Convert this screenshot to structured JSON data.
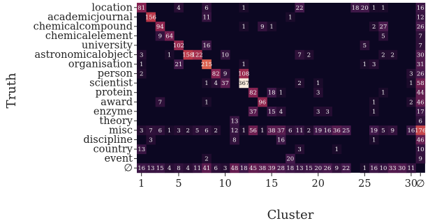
{
  "chart_data": {
    "type": "heatmap",
    "xlabel": "Cluster",
    "ylabel": "Truth",
    "rows": [
      "location",
      "academicjournal",
      "chemicalcompound",
      "chemicalelement",
      "university",
      "astronomicalobject",
      "organisation",
      "person",
      "scientist",
      "protein",
      "award",
      "enzyme",
      "theory",
      "misc",
      "discipline",
      "country",
      "event",
      "∅"
    ],
    "columns": [
      "1",
      "2",
      "3",
      "4",
      "5",
      "6",
      "7",
      "8",
      "9",
      "10",
      "11",
      "12",
      "13",
      "14",
      "15",
      "16",
      "17",
      "18",
      "19",
      "20",
      "21",
      "22",
      "23",
      "24",
      "25",
      "26",
      "27",
      "28",
      "29",
      "30",
      "∅"
    ],
    "x_ticks": [
      "1",
      "5",
      "10",
      "15",
      "20",
      "25",
      "30",
      "∅"
    ],
    "values": [
      [
        81,
        null,
        null,
        null,
        4,
        null,
        null,
        6,
        null,
        null,
        null,
        1,
        null,
        null,
        null,
        null,
        null,
        22,
        null,
        null,
        null,
        null,
        null,
        18,
        20,
        1,
        1,
        null,
        null,
        null,
        16
      ],
      [
        null,
        156,
        null,
        null,
        null,
        null,
        null,
        11,
        null,
        null,
        null,
        null,
        null,
        null,
        null,
        null,
        1,
        null,
        null,
        null,
        null,
        null,
        null,
        null,
        null,
        null,
        null,
        null,
        null,
        null,
        12
      ],
      [
        null,
        null,
        94,
        null,
        null,
        null,
        null,
        null,
        null,
        null,
        null,
        1,
        null,
        9,
        1,
        null,
        null,
        null,
        null,
        null,
        null,
        null,
        null,
        null,
        null,
        2,
        27,
        null,
        null,
        null,
        26
      ],
      [
        null,
        null,
        9,
        64,
        null,
        null,
        null,
        null,
        null,
        null,
        null,
        null,
        null,
        null,
        null,
        null,
        null,
        null,
        null,
        null,
        null,
        null,
        null,
        null,
        null,
        null,
        5,
        null,
        null,
        null,
        7
      ],
      [
        null,
        null,
        null,
        null,
        102,
        null,
        null,
        16,
        null,
        null,
        null,
        null,
        null,
        null,
        null,
        null,
        null,
        null,
        null,
        null,
        null,
        null,
        null,
        null,
        5,
        null,
        null,
        null,
        null,
        null,
        7
      ],
      [
        3,
        null,
        null,
        1,
        null,
        158,
        122,
        null,
        null,
        10,
        null,
        null,
        null,
        null,
        null,
        null,
        null,
        7,
        2,
        null,
        null,
        null,
        null,
        null,
        null,
        null,
        2,
        2,
        null,
        null,
        30
      ],
      [
        1,
        null,
        null,
        null,
        21,
        null,
        null,
        215,
        null,
        null,
        null,
        1,
        null,
        null,
        null,
        null,
        null,
        null,
        null,
        null,
        null,
        null,
        null,
        null,
        1,
        3,
        null,
        null,
        null,
        null,
        31
      ],
      [
        2,
        null,
        null,
        null,
        null,
        null,
        null,
        null,
        82,
        9,
        null,
        108,
        null,
        null,
        null,
        null,
        null,
        null,
        null,
        null,
        null,
        null,
        null,
        null,
        null,
        null,
        null,
        null,
        null,
        3,
        26
      ],
      [
        null,
        null,
        null,
        null,
        null,
        null,
        null,
        1,
        4,
        37,
        null,
        367,
        null,
        null,
        null,
        null,
        null,
        2,
        null,
        1,
        null,
        null,
        null,
        null,
        null,
        null,
        null,
        null,
        null,
        1,
        58
      ],
      [
        null,
        null,
        null,
        null,
        null,
        null,
        null,
        null,
        null,
        null,
        null,
        null,
        82,
        null,
        18,
        1,
        null,
        null,
        null,
        3,
        null,
        null,
        null,
        null,
        null,
        null,
        1,
        null,
        null,
        null,
        44
      ],
      [
        null,
        null,
        7,
        null,
        null,
        null,
        null,
        1,
        null,
        null,
        null,
        null,
        null,
        96,
        null,
        null,
        null,
        null,
        null,
        null,
        null,
        null,
        null,
        null,
        null,
        1,
        null,
        null,
        null,
        2,
        46
      ],
      [
        null,
        null,
        null,
        null,
        null,
        null,
        null,
        null,
        null,
        null,
        null,
        null,
        37,
        null,
        15,
        4,
        null,
        null,
        null,
        3,
        3,
        null,
        null,
        null,
        null,
        1,
        null,
        null,
        null,
        null,
        17
      ],
      [
        null,
        null,
        null,
        null,
        null,
        null,
        null,
        null,
        null,
        null,
        13,
        null,
        null,
        null,
        null,
        null,
        null,
        null,
        null,
        null,
        null,
        null,
        null,
        null,
        null,
        null,
        null,
        null,
        null,
        null,
        6
      ],
      [
        3,
        7,
        6,
        1,
        3,
        2,
        5,
        6,
        2,
        null,
        12,
        1,
        56,
        1,
        38,
        37,
        6,
        11,
        2,
        19,
        16,
        36,
        25,
        null,
        null,
        19,
        5,
        9,
        null,
        16,
        176
      ],
      [
        null,
        3,
        null,
        null,
        null,
        null,
        null,
        null,
        null,
        null,
        8,
        null,
        null,
        null,
        null,
        16,
        null,
        null,
        null,
        null,
        null,
        null,
        null,
        null,
        null,
        1,
        null,
        null,
        null,
        null,
        46
      ],
      [
        13,
        null,
        null,
        null,
        null,
        null,
        null,
        null,
        null,
        null,
        null,
        null,
        null,
        null,
        null,
        null,
        null,
        3,
        null,
        null,
        null,
        1,
        null,
        null,
        null,
        null,
        null,
        null,
        null,
        null,
        10
      ],
      [
        null,
        null,
        null,
        null,
        null,
        null,
        null,
        2,
        null,
        null,
        null,
        null,
        null,
        null,
        null,
        null,
        20,
        null,
        null,
        null,
        null,
        null,
        null,
        null,
        null,
        null,
        null,
        null,
        null,
        null,
        9
      ],
      [
        16,
        13,
        15,
        4,
        8,
        4,
        11,
        41,
        6,
        3,
        48,
        18,
        45,
        38,
        39,
        28,
        18,
        13,
        15,
        20,
        26,
        9,
        22,
        null,
        1,
        16,
        10,
        33,
        30,
        11,
        null
      ]
    ],
    "colorscale": {
      "low": "#0c0722",
      "mid1": "#451a4d",
      "mid2": "#b43b4b",
      "mid3": "#f38c5b",
      "high": "#faefe3"
    },
    "grid": false,
    "legend": "none"
  }
}
